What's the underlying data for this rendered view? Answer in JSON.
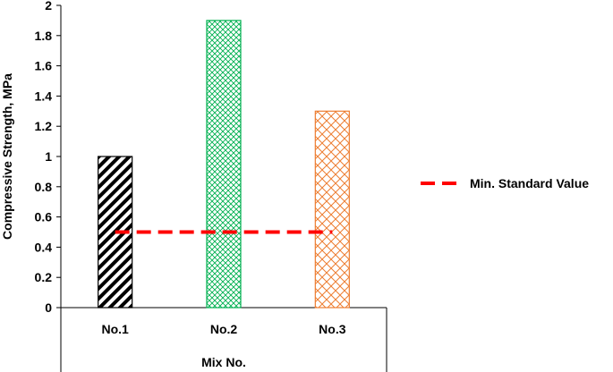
{
  "chart_data": {
    "type": "bar",
    "categories": [
      "No.1",
      "No.2",
      "No.3"
    ],
    "values": [
      1.0,
      1.9,
      1.3
    ],
    "ylabel": "Compressive Strength, MPa",
    "xlabel": "Mix No.",
    "ylim": [
      0,
      2
    ],
    "yticks": [
      "0",
      "0.2",
      "0.4",
      "0.6",
      "0.8",
      "1",
      "1.2",
      "1.4",
      "1.6",
      "1.8",
      "2"
    ],
    "grid": false,
    "bar_styles": [
      {
        "pattern": "diagonal-stripes",
        "color": "#000000"
      },
      {
        "pattern": "crosshatch",
        "color": "#00b050"
      },
      {
        "pattern": "crosshatch",
        "color": "#ed7d31"
      }
    ],
    "reference_line": {
      "name": "Min. Standard Value",
      "value": 0.5,
      "color": "#ff0000",
      "style": "dashed"
    },
    "legend_position": "right"
  }
}
